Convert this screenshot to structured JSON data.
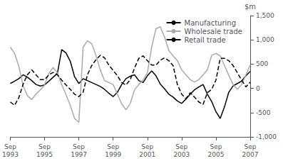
{
  "chart_data": {
    "type": "line",
    "ylabel": "$m",
    "categories": [
      "Sep\n1993",
      null,
      null,
      null,
      null,
      null,
      null,
      null,
      "Sep\n1995",
      null,
      null,
      null,
      null,
      null,
      null,
      null,
      "Sep\n1997",
      null,
      null,
      null,
      null,
      null,
      null,
      null,
      "Sep\n1999",
      null,
      null,
      null,
      null,
      null,
      null,
      null,
      "Sep\n2001",
      null,
      null,
      null,
      null,
      null,
      null,
      null,
      "Sep\n2003",
      null,
      null,
      null,
      null,
      null,
      null,
      null,
      "Sep\n2005",
      null,
      null,
      null,
      null,
      null,
      null,
      null,
      "Sep\n2007"
    ],
    "series": [
      {
        "name": "Manufacturing",
        "color": "#000000",
        "line_style": "solid",
        "values": [
          100,
          150,
          200,
          280,
          230,
          160,
          80,
          50,
          70,
          150,
          230,
          310,
          800,
          730,
          560,
          240,
          100,
          200,
          160,
          120,
          80,
          40,
          -20,
          -100,
          -170,
          -80,
          80,
          200,
          250,
          280,
          160,
          120,
          260,
          360,
          260,
          90,
          -10,
          -120,
          -180,
          -260,
          -310,
          -220,
          -120,
          -30,
          30,
          80,
          -120,
          -270,
          -480,
          -620,
          -380,
          -80,
          50,
          100,
          150,
          260,
          350
        ]
      },
      {
        "name": "Wholesale trade",
        "color": "#aaaaaa",
        "line_style": "solid",
        "values": [
          850,
          720,
          450,
          50,
          -150,
          -230,
          -120,
          -30,
          70,
          310,
          430,
          320,
          80,
          -130,
          -350,
          -620,
          -700,
          850,
          980,
          920,
          680,
          380,
          160,
          120,
          80,
          -120,
          -320,
          -440,
          -310,
          -30,
          80,
          170,
          320,
          850,
          1230,
          1270,
          1060,
          780,
          670,
          570,
          380,
          280,
          180,
          130,
          180,
          280,
          380,
          680,
          720,
          670,
          470,
          270,
          80,
          -20,
          80,
          280,
          480
        ]
      },
      {
        "name": "Retail trade",
        "color": "#000000",
        "line_style": "dashed",
        "values": [
          -280,
          -350,
          -190,
          90,
          280,
          380,
          280,
          180,
          180,
          280,
          330,
          280,
          170,
          70,
          -20,
          -120,
          -170,
          -80,
          280,
          470,
          590,
          680,
          630,
          480,
          370,
          260,
          120,
          70,
          180,
          420,
          620,
          670,
          570,
          480,
          480,
          580,
          630,
          570,
          470,
          80,
          -120,
          -210,
          -90,
          -180,
          -280,
          -330,
          -90,
          -20,
          170,
          620,
          620,
          570,
          470,
          320,
          170,
          30,
          130
        ]
      }
    ],
    "ylim": [
      -1000,
      1500
    ],
    "yticks": [
      -1000,
      -500,
      0,
      500,
      1000,
      1500
    ],
    "grid": false,
    "legend": "upper right"
  }
}
